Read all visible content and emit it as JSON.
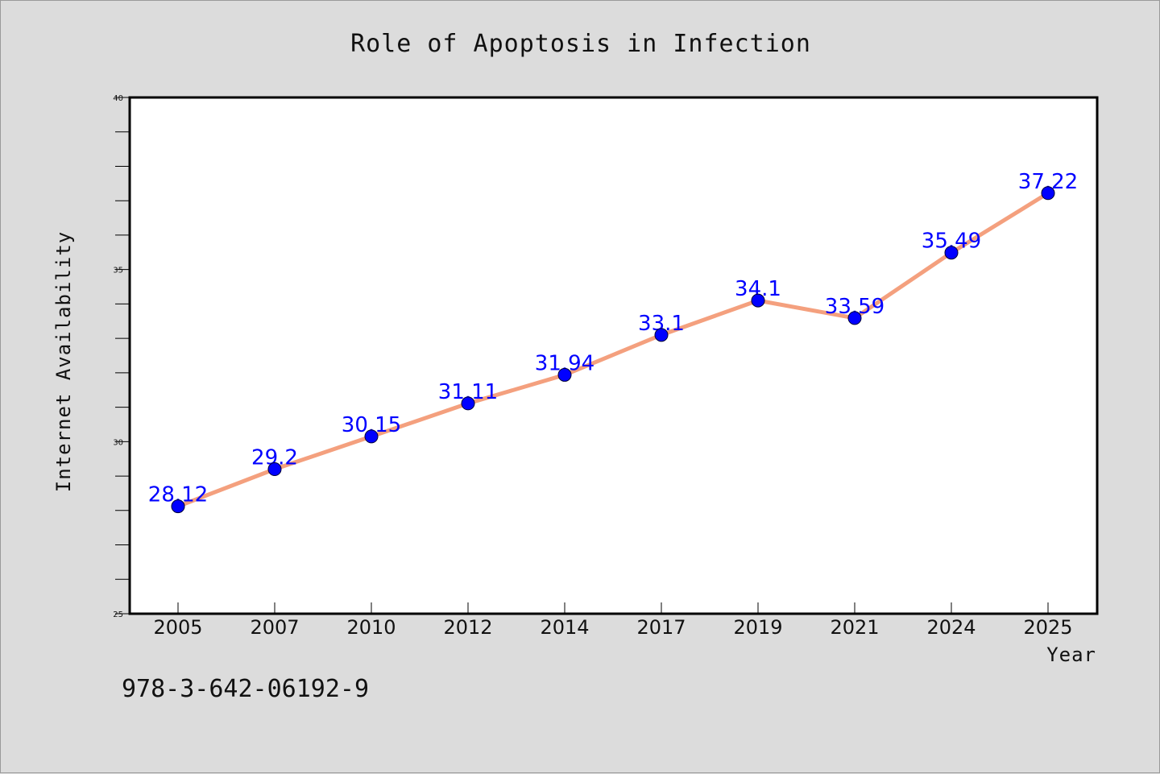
{
  "chart_data": {
    "type": "line",
    "title": "Role of Apoptosis in Infection",
    "xlabel": "Year",
    "ylabel": "Internet Availability",
    "categories": [
      "2005",
      "2007",
      "2010",
      "2012",
      "2014",
      "2017",
      "2019",
      "2021",
      "2024",
      "2025"
    ],
    "values": [
      28.12,
      29.2,
      30.15,
      31.11,
      31.94,
      33.1,
      34.1,
      33.59,
      35.49,
      37.22
    ],
    "data_labels": [
      "28.12",
      "29.2",
      "30.15",
      "31.11",
      "31.94",
      "33.1",
      "34.1",
      "33.59",
      "35.49",
      "37.22"
    ],
    "ylim": [
      25,
      40
    ],
    "yticks": [
      25,
      30,
      35,
      40
    ],
    "grid": false,
    "legend": "none",
    "line_color": "#f4a07e",
    "marker_color": "#0000ff",
    "label_color": "#0000ff"
  },
  "footer": {
    "isbn": "978-3-642-06192-9"
  }
}
